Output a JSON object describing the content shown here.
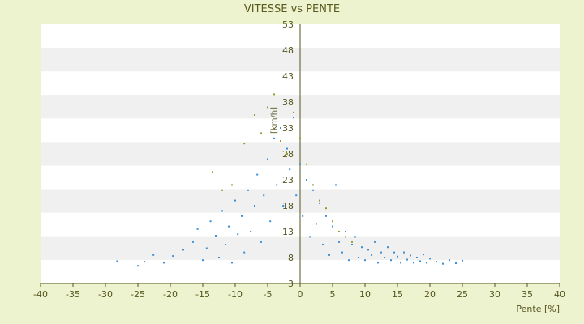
{
  "chart_data": {
    "type": "scatter",
    "title": "VITESSE vs PENTE",
    "xlabel": "Pente [%]",
    "ylabel": "[km/h]",
    "xlim": [
      -40,
      40
    ],
    "ylim": [
      3,
      53
    ],
    "xticks": [
      -40,
      -35,
      -30,
      -25,
      -20,
      -15,
      -10,
      -5,
      0,
      5,
      10,
      15,
      20,
      25,
      30,
      35,
      40
    ],
    "yticks": [
      3,
      8,
      13,
      18,
      23,
      28,
      33,
      38,
      43,
      48,
      53
    ],
    "grid": "alternating horizontal bands",
    "colors": {
      "background": "#eef3cf",
      "plot_band_light": "#ffffff",
      "plot_band_dark": "#f0f0f0",
      "axis": "#55551f",
      "series_main": "#3b8fd6",
      "series_secondary": "#9a9a2a"
    },
    "series": [
      {
        "name": "",
        "color": "#3b8fd6",
        "points": [
          [
            -28.2,
            7.3
          ],
          [
            -25.0,
            6.4
          ],
          [
            -24.0,
            7.2
          ],
          [
            -22.6,
            8.5
          ],
          [
            -21.0,
            7.0
          ],
          [
            -19.6,
            8.3
          ],
          [
            -18.0,
            9.5
          ],
          [
            -16.5,
            11.0
          ],
          [
            -15.8,
            13.5
          ],
          [
            -15.0,
            7.5
          ],
          [
            -14.4,
            9.8
          ],
          [
            -13.8,
            15.0
          ],
          [
            -13.0,
            12.2
          ],
          [
            -12.5,
            8.0
          ],
          [
            -12.0,
            17.0
          ],
          [
            -11.5,
            10.5
          ],
          [
            -11.0,
            14.0
          ],
          [
            -10.5,
            7.0
          ],
          [
            -10.0,
            19.0
          ],
          [
            -9.6,
            12.5
          ],
          [
            -9.0,
            16.0
          ],
          [
            -8.6,
            9.0
          ],
          [
            -8.0,
            21.0
          ],
          [
            -7.6,
            13.0
          ],
          [
            -7.0,
            18.0
          ],
          [
            -6.6,
            24.0
          ],
          [
            -6.0,
            11.0
          ],
          [
            -5.6,
            20.0
          ],
          [
            -5.0,
            27.0
          ],
          [
            -4.6,
            15.0
          ],
          [
            -4.0,
            31.0
          ],
          [
            -3.6,
            22.0
          ],
          [
            -3.0,
            33.0
          ],
          [
            -2.6,
            18.0
          ],
          [
            -2.0,
            29.0
          ],
          [
            -1.6,
            25.0
          ],
          [
            -1.0,
            35.0
          ],
          [
            -0.6,
            20.0
          ],
          [
            0.0,
            26.0
          ],
          [
            0.4,
            16.0
          ],
          [
            1.0,
            23.0
          ],
          [
            1.5,
            12.0
          ],
          [
            2.0,
            21.0
          ],
          [
            2.5,
            14.5
          ],
          [
            3.0,
            18.5
          ],
          [
            3.5,
            10.5
          ],
          [
            4.0,
            16.0
          ],
          [
            4.5,
            8.5
          ],
          [
            5.0,
            14.0
          ],
          [
            5.5,
            22.0
          ],
          [
            6.0,
            11.0
          ],
          [
            6.5,
            9.0
          ],
          [
            7.0,
            13.0
          ],
          [
            7.5,
            7.5
          ],
          [
            8.0,
            10.5
          ],
          [
            8.5,
            12.0
          ],
          [
            9.0,
            8.0
          ],
          [
            9.5,
            10.0
          ],
          [
            10.0,
            7.5
          ],
          [
            10.5,
            9.5
          ],
          [
            11.0,
            8.5
          ],
          [
            11.5,
            11.0
          ],
          [
            12.0,
            7.0
          ],
          [
            12.5,
            9.0
          ],
          [
            13.0,
            8.0
          ],
          [
            13.5,
            10.0
          ],
          [
            14.0,
            7.5
          ],
          [
            14.5,
            9.0
          ],
          [
            15.0,
            8.2
          ],
          [
            15.5,
            7.0
          ],
          [
            16.0,
            9.0
          ],
          [
            16.5,
            7.6
          ],
          [
            17.0,
            8.4
          ],
          [
            17.5,
            7.0
          ],
          [
            18.0,
            8.0
          ],
          [
            18.5,
            7.3
          ],
          [
            19.0,
            8.6
          ],
          [
            19.5,
            7.0
          ],
          [
            20.0,
            7.8
          ],
          [
            21.0,
            7.2
          ],
          [
            22.0,
            6.8
          ],
          [
            23.0,
            7.5
          ],
          [
            24.0,
            6.9
          ],
          [
            25.0,
            7.4
          ]
        ]
      },
      {
        "name": "",
        "color": "#9a9a2a",
        "points": [
          [
            -13.5,
            24.5
          ],
          [
            -12.0,
            21.0
          ],
          [
            -10.5,
            22.0
          ],
          [
            -8.6,
            30.0
          ],
          [
            -7.0,
            35.5
          ],
          [
            -6.0,
            32.0
          ],
          [
            -5.0,
            37.0
          ],
          [
            -4.0,
            39.5
          ],
          [
            -3.0,
            30.5
          ],
          [
            -2.0,
            28.0
          ],
          [
            -1.0,
            36.0
          ],
          [
            0.0,
            31.0
          ],
          [
            1.0,
            26.0
          ],
          [
            2.0,
            22.0
          ],
          [
            3.0,
            19.0
          ],
          [
            4.0,
            17.5
          ],
          [
            5.0,
            15.0
          ],
          [
            6.0,
            13.0
          ],
          [
            7.0,
            12.0
          ],
          [
            8.0,
            11.0
          ]
        ]
      }
    ]
  }
}
